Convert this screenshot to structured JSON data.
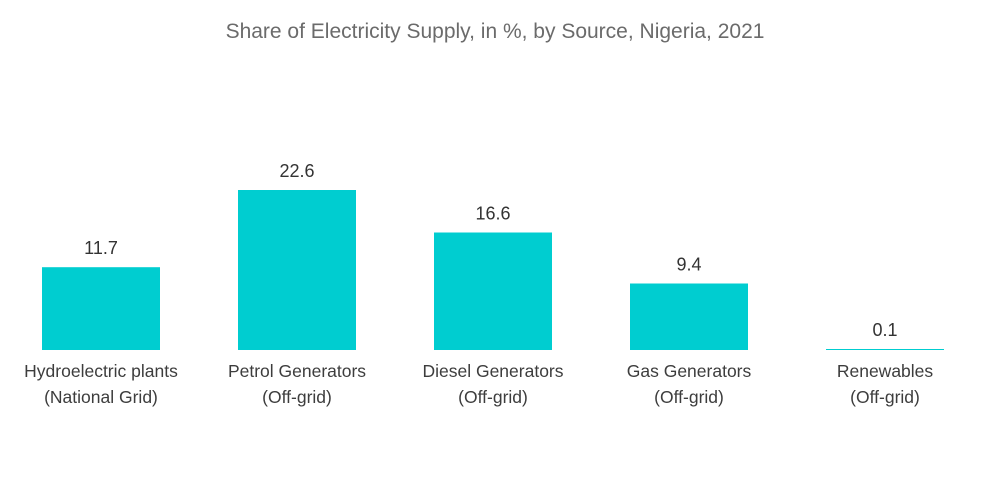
{
  "chart_data": {
    "type": "bar",
    "title": "Share of Electricity Supply, in %, by Source, Nigeria, 2021",
    "xlabel": "",
    "ylabel": "",
    "ylim": [
      0,
      22.6
    ],
    "grid": false,
    "legend": "none",
    "bar_color": "#00cdd0",
    "categories": [
      [
        "Hydroelectric plants",
        "(National Grid)"
      ],
      [
        "Petrol Generators",
        "(Off-grid)"
      ],
      [
        "Diesel Generators",
        "(Off-grid)"
      ],
      [
        "Gas Generators",
        "(Off-grid)"
      ],
      [
        "Renewables",
        "(Off-grid)"
      ]
    ],
    "values": [
      11.7,
      22.6,
      16.6,
      9.4,
      0.1
    ],
    "value_labels": [
      "11.7",
      "22.6",
      "16.6",
      "9.4",
      "0.1"
    ]
  }
}
